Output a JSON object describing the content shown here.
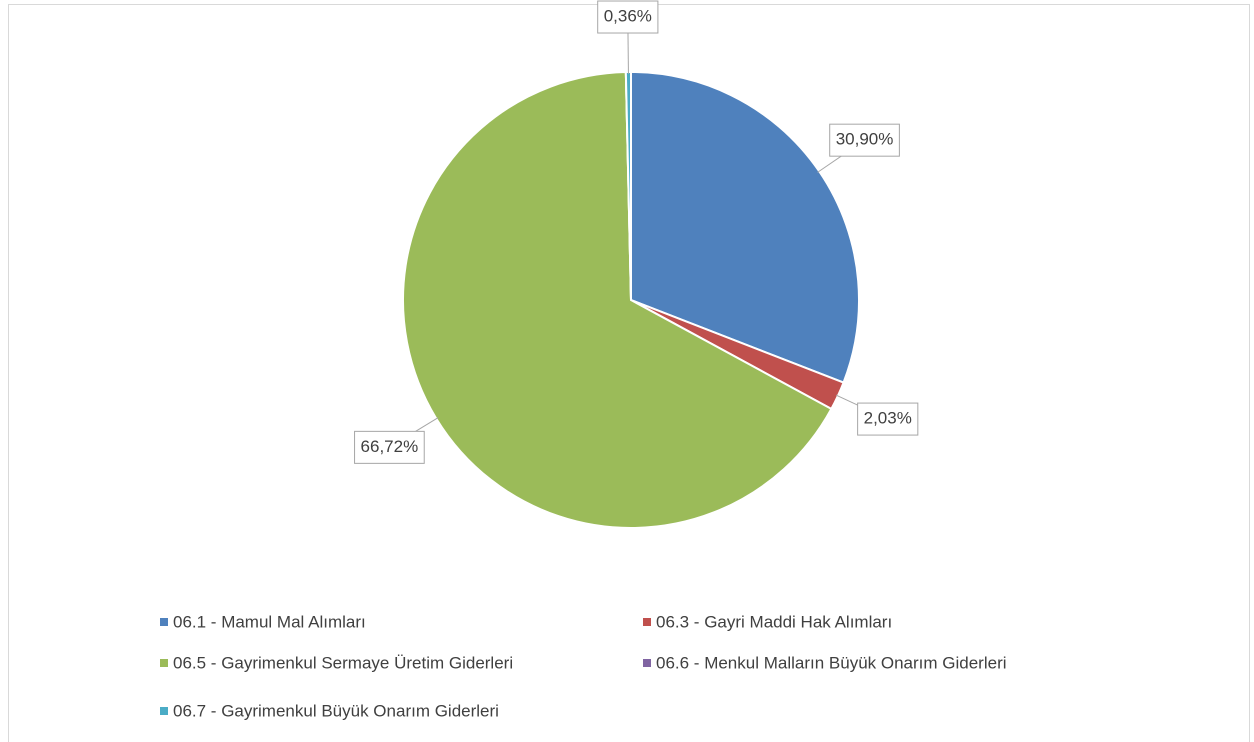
{
  "chart_data": {
    "type": "pie",
    "categories": [
      "06.1 - Mamul Mal Alımları",
      "06.3 - Gayri Maddi Hak Alımları",
      "06.5 - Gayrimenkul Sermaye Üretim Giderleri",
      "06.6 - Menkul Malların Büyük Onarım Giderleri",
      "06.7 - Gayrimenkul Büyük Onarım Giderleri"
    ],
    "values": [
      30.9,
      2.03,
      66.72,
      0,
      0.36
    ],
    "value_labels": [
      "30,90%",
      "2,03%",
      "66,72%",
      null,
      "0,36%"
    ],
    "colors": [
      "#4f81bd",
      "#c0504d",
      "#9bbb59",
      "#8064a2",
      "#4bacc6"
    ],
    "legend": "bottom"
  }
}
